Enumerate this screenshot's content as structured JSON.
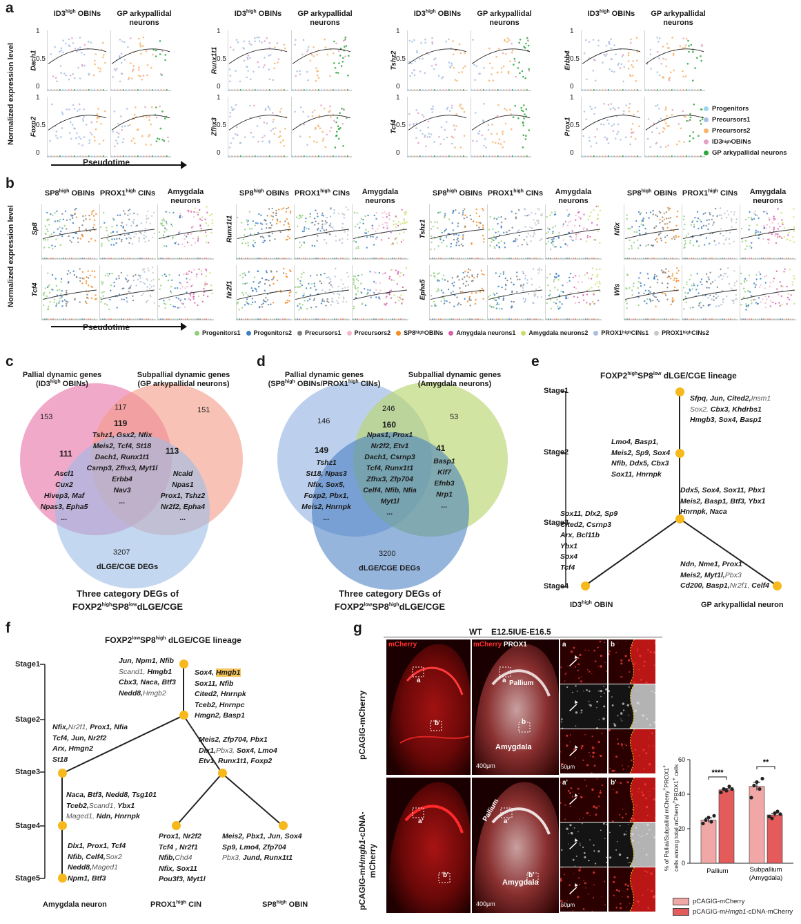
{
  "panel_labels": {
    "a": "a",
    "b": "b",
    "c": "c",
    "d": "d",
    "e": "e",
    "f": "f",
    "g": "g"
  },
  "a": {
    "col_headers": [
      {
        "left": "ID3",
        "sup": "high",
        "rest": " OBINs",
        "right": "GP arkypallidal neurons"
      },
      {
        "left": "ID3",
        "sup": "high",
        "rest": " OBINs",
        "right": "GP arkypallidal neurons"
      },
      {
        "left": "ID3",
        "sup": "high",
        "rest": " OBINs",
        "right": "GP arkypallidal neurons"
      },
      {
        "left": "ID3",
        "sup": "high",
        "rest": " OBINs",
        "right": "GP arkypallidal neurons"
      }
    ],
    "genes": [
      [
        "Dach1",
        "Foxp2"
      ],
      [
        "Runx1t1",
        "Zfhx3"
      ],
      [
        "Tshz2",
        "Tcf4"
      ],
      [
        "Erbb4",
        "Prox1"
      ]
    ],
    "ylabel": "Normalized expression level",
    "xlabel": "Pseudotime",
    "ticks": [
      "1",
      "0.5",
      "0"
    ],
    "legend": [
      {
        "label": "Progenitors",
        "color": "#9fd4ee"
      },
      {
        "label": "Precursors1",
        "color": "#a9bfe3"
      },
      {
        "label": "Precursors2",
        "color": "#f7b36b"
      },
      {
        "label": "ID3",
        "sup": "high",
        "rest": " OBINs",
        "color": "#e4a0c2"
      },
      {
        "label": "GP arkypallidal neurons",
        "color": "#2aa63a"
      }
    ]
  },
  "b": {
    "col_headers": [
      {
        "h1": "SP8",
        "s1": "high",
        "r1": " OBINs",
        "h2": "PROX1",
        "s2": "high",
        "r2": " CINs",
        "h3": "Amygdala neurons"
      },
      {
        "h1": "SP8",
        "s1": "high",
        "r1": " OBINs",
        "h2": "PROX1",
        "s2": "high",
        "r2": " CINs",
        "h3": "Amygdala neurons"
      },
      {
        "h1": "SP8",
        "s1": "high",
        "r1": " OBINs",
        "h2": "PROX1",
        "s2": "high",
        "r2": " CINs",
        "h3": "Amygdala neurons"
      },
      {
        "h1": "SP8",
        "s1": "high",
        "r1": " OBINs",
        "h2": "PROX1",
        "s2": "high",
        "r2": " CINs",
        "h3": "Amygdala neurons"
      }
    ],
    "genes": [
      [
        "Sp8",
        "Tcf4"
      ],
      [
        "Runx1t1",
        "Nr2f1"
      ],
      [
        "Tshz1",
        "Epha5"
      ],
      [
        "Nfix",
        "Wls"
      ]
    ],
    "ylabel": "Normalized expression level",
    "xlabel": "Pseudotime",
    "legend": [
      {
        "label": "Progenitors1",
        "color": "#8fcf7a"
      },
      {
        "label": "Progenitors2",
        "color": "#3a7fc4"
      },
      {
        "label": "Precursors1",
        "color": "#7f7f7f"
      },
      {
        "label": "Precursors2",
        "color": "#f2b6cf"
      },
      {
        "label": "SP8",
        "sup": "high",
        "rest": " OBINs",
        "color": "#f58a1f"
      },
      {
        "label": "Amygdala neurons1",
        "color": "#d45fa8"
      },
      {
        "label": "Amygdala neurons2",
        "color": "#c9dd6a"
      },
      {
        "label": "PROX1",
        "sup": "high",
        "rest": " CINs1",
        "color": "#a6bce0"
      },
      {
        "label": "PROX1",
        "sup": "high",
        "rest": " CINs2",
        "color": "#c8c8c8"
      }
    ]
  },
  "c": {
    "title_left": "Pallial dynamic genes",
    "title_left2a": "(ID3",
    "title_left2s": "high",
    "title_left2b": " OBINs)",
    "title_right": "Subpallial dynamic genes",
    "title_right2": "(GP arkypallidal neurons)",
    "n_left": "153",
    "n_top": "117",
    "n_right": "151",
    "n_center": "119",
    "n_lm": "111",
    "n_rm": "113",
    "n_bottom": "3207",
    "center_genes": [
      "Tshz1, Gsx2, Nfix",
      "Meis2, Tcf4, St18",
      "Dach1, Runx1t1",
      "Csrnp3, Zfhx3, Myt1l",
      "Erbb4",
      "Nav3",
      "..."
    ],
    "left_genes": [
      "Ascl1",
      "Cux2",
      "Hivep3, Maf",
      "Npas3, Epha5",
      "..."
    ],
    "right_genes": [
      "Ncald",
      "Npas1",
      "Prox1, Tshz2",
      "Nr2f2, Epha4",
      "..."
    ],
    "bottom_label": "dLGE/CGE DEGs",
    "footer1": "Three category DEGs of",
    "footer2a": "FOXP2",
    "footer2s1": "high",
    "footer2b": "SP8",
    "footer2s2": "low",
    "footer2c": "dLGE/CGE"
  },
  "d": {
    "title_left1a": "Pallial dynamic genes",
    "title_left2a": "(SP8",
    "title_left2s": "high",
    "title_left2b": " OBINs/PROX1",
    "title_left2s2": "high",
    "title_left2c": " CINs)",
    "title_right": "Subpallial dynamic genes",
    "title_right2": "(Amygdala neurons)",
    "n_left": "146",
    "n_top": "246",
    "n_right": "53",
    "n_center": "160",
    "n_lm": "149",
    "n_rm": "41",
    "n_bottom": "3200",
    "center_genes": [
      "Npas1, Prox1",
      "Nr2f2, Etv1",
      "Dach1, Csrnp3",
      "Tcf4, Runx1t1",
      "Zfhx3, Zfp704",
      "Celf4, Nfib, Nfia",
      "Myt1l",
      "..."
    ],
    "left_genes": [
      "Tshz1",
      "St18, Npas3",
      "Nfix, Sox5,",
      "Foxp2, Pbx1,",
      "Meis2, Hnrnpk",
      "..."
    ],
    "right_genes": [
      "Basp1",
      "Klf7",
      "Efnb3",
      "Nrp1",
      "..."
    ],
    "bottom_label": "dLGE/CGE DEGs",
    "footer1": "Three category DEGs of",
    "footer2a": "FOXP2",
    "footer2s1": "low",
    "footer2b": "SP8",
    "footer2s2": "high",
    "footer2c": "dLGE/CGE"
  },
  "e": {
    "title_a": "FOXP2",
    "title_s1": "high",
    "title_b": "SP8",
    "title_s2": "low",
    "title_c": " dLGE/CGE lineage",
    "stages": [
      "Stage1",
      "Stage2",
      "Stage3",
      "Stage4"
    ],
    "s1_genes": [
      "Sfpq, Jun, Cited2,|Insm1",
      "|Sox2,| Cbx3, Khdrbs1",
      "Hmgb3, Sox4, Basp1"
    ],
    "s2_genes": [
      "Lmo4, Basp1,",
      "Meis2, Sp9, Sox4",
      "Nfib, Ddx5, Cbx3",
      "Sox11, Hnrnpk"
    ],
    "s3_right": [
      "Ddx5, Sox4, Sox11, Pbx1",
      "Meis2, Basp1, Btf3, Ybx1",
      "Hnrnpk, Naca"
    ],
    "s3_left": [
      "Sox11, Dlx2, Sp9",
      "Cited2, Csrnp3",
      "Arx, Bcl11b",
      "Ybx1",
      "Sox4",
      "Tcf4"
    ],
    "s4_right": [
      "Ndn, Nme1, Prox1",
      "Meis2, Myt1l,|Pbx3",
      "Cd200, Basp1,|Nr2f1,| Celf4"
    ],
    "leaf_left": "ID3",
    "leaf_left_sup": "high",
    "leaf_left_rest": " OBIN",
    "leaf_right": "GP arkypallidal neuron"
  },
  "f": {
    "title_a": "FOXP2",
    "title_s1": "low",
    "title_b": "SP8",
    "title_s2": "high",
    "title_c": " dLGE/CGE lineage",
    "stages": [
      "Stage1",
      "Stage2",
      "Stage3",
      "Stage4",
      "Stage5"
    ],
    "s1_left": [
      "Jun, Npm1, Nfib",
      "|Scand1,| Hmgb1",
      "Cbx3, Naca, Btf3",
      "Nedd8,|Hmgb2"
    ],
    "s1_right": [
      "Sox4, ",
      "Sox11, Nfib",
      "Cited2, Hnrnpk",
      "Tceb2, Hnrnpc",
      "Hmgn2, Basp1"
    ],
    "s1_right_hl": "Hmgb1",
    "s2_left": [
      "Nfix,|Nr2f1,| Prox1, Nfia",
      "Tcf4, Jun, Nr2f2",
      "Arx, Hmgn2",
      "St18"
    ],
    "s2_right": [
      "Meis2, Zfp704, Pbx1",
      "Dlx1,|Pbx3,| Sox4, Lmo4",
      "Etv1, Runx1t1, Foxp2"
    ],
    "s3_left": [
      "Naca, Btf3, Nedd8, Tsg101",
      "Tceb2,|Scand1,| Ybx1",
      "|Maged1,| Ndn, Hnrnpk"
    ],
    "s4_left": [
      "Dlx1, Prox1, Tcf4",
      "Nfib, Celf4,|Sox2",
      "Nedd8,|Maged1",
      "Npm1, Btf3"
    ],
    "s4_mid": [
      "Prox1, Nr2f2",
      "Tcf4 , Nr2f1",
      "Nfib,|Chd4",
      "Nfix, Sox11",
      "Pou3f3, Myt1l"
    ],
    "s4_right": [
      "Meis2, Pbx1, Jun, Sox4",
      "Sp9, Lmo4, Zfp704",
      "|Pbx3,| Jund, Runx1t1"
    ],
    "leaf_left": "Amygdala neuron",
    "leaf_mid": "PROX1",
    "leaf_mid_sup": "high",
    "leaf_mid_rest": " CIN",
    "leaf_right": "SP8",
    "leaf_right_sup": "high",
    "leaf_right_rest": " OBIN"
  },
  "g": {
    "title": "WT    E12.5IUE-E16.5",
    "row1_label": "pCAGIG-mCherry",
    "row2_label_a": "pCAGIG-m",
    "row2_label_i": "Hmgb1",
    "row2_label_b": "-cDNA-",
    "row2_label_c": "mCherry",
    "col1_label": "mCherry",
    "col2_label_a": "mCherry",
    "col2_label_b": " PROX1",
    "inset_a": "a",
    "inset_b": "b",
    "inset_a2": "a'",
    "inset_b2": "b'",
    "pallium": "Pallium",
    "amygdala": "Amygdala",
    "scale1": "400μm",
    "scale2": "50μm",
    "chart_ylabel1": "% of Pallial/Subpallial mCherry",
    "chart_ylabel2": "cells among total mCherry",
    "chart_ylabel3": "PROX1",
    "sig1": "****",
    "sig2": "**",
    "legend1": "pCAGIG-mCherry",
    "legend2a": "pCAGIG-m",
    "legend2i": "Hmgb1",
    "legend2b": "-cDNA-mCherry"
  },
  "chart_data": {
    "type": "bar",
    "categories": [
      "Pallium",
      "Subpallium\n(Amygdala)"
    ],
    "category_labels": [
      "Pallium",
      "Subpallium",
      "(Amygdala)"
    ],
    "series": [
      {
        "name": "pCAGIG-mCherry",
        "values": [
          25,
          44.5
        ],
        "color": "#f2a7a7"
      },
      {
        "name": "pCAGIG-mHmgb1-cDNA-mCherry",
        "values": [
          42.5,
          28
        ],
        "color": "#e35b5b"
      }
    ],
    "ylim": [
      0,
      60
    ],
    "yticks": [
      "0",
      "20",
      "40",
      "60"
    ],
    "points": [
      [
        [
          23,
          25,
          26.5,
          24,
          27.5
        ],
        [
          41,
          43,
          42,
          44.5,
          43
        ]
      ],
      [
        [
          38,
          45,
          47,
          43,
          49
        ],
        [
          27,
          26,
          29,
          30,
          28.5
        ]
      ]
    ],
    "errors": [
      [
        1.3,
        0.8
      ],
      [
        2.3,
        1.0
      ]
    ]
  }
}
